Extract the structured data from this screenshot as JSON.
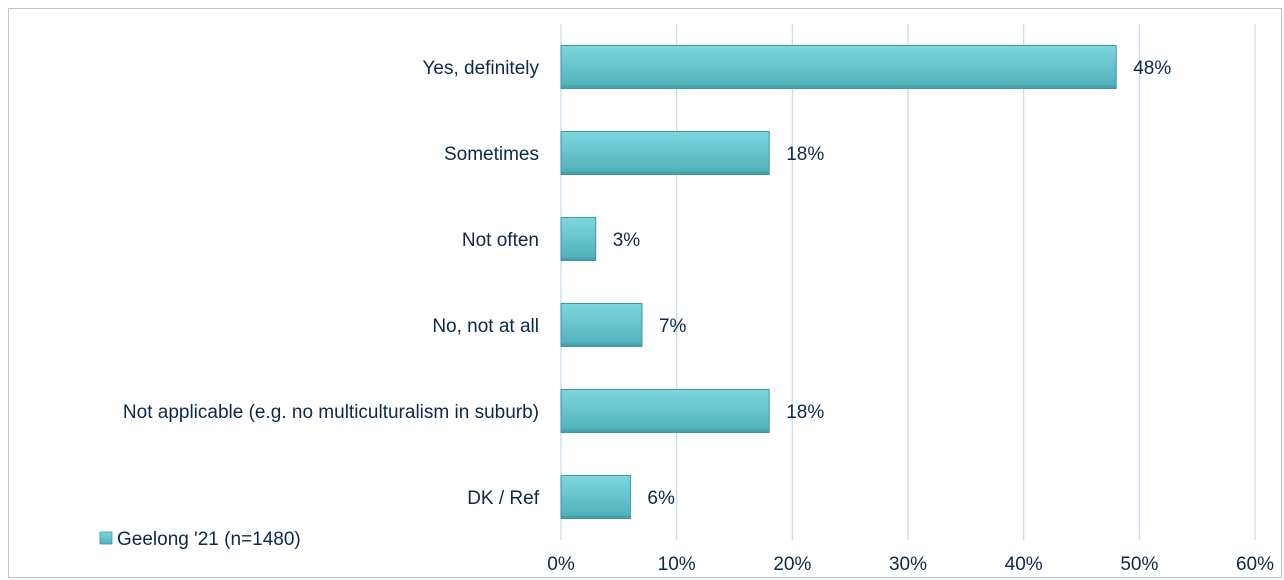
{
  "chart_data": {
    "type": "bar",
    "orientation": "horizontal",
    "categories": [
      "Yes, definitely",
      "Sometimes",
      "Not often",
      "No, not at all",
      "Not applicable (e.g. no multiculturalism in suburb)",
      "DK / Ref"
    ],
    "series": [
      {
        "name": "Geelong '21 (n=1480)",
        "values": [
          48,
          18,
          3,
          7,
          18,
          6
        ],
        "labels": [
          "48%",
          "18%",
          "3%",
          "7%",
          "18%",
          "6%"
        ]
      }
    ],
    "xlim": [
      0,
      60
    ],
    "x_ticks": [
      0,
      10,
      20,
      30,
      40,
      50,
      60
    ],
    "x_tick_labels": [
      "0%",
      "10%",
      "20%",
      "30%",
      "40%",
      "50%",
      "60%"
    ],
    "grid": true,
    "legend_position": "bottom-left",
    "colors": {
      "bar_top": "#7ed6df",
      "bar_bottom": "#4fb0ba",
      "bar_edge": "#3f97a1",
      "grid": "#c9dcea",
      "text": "#0b2a4a"
    }
  }
}
